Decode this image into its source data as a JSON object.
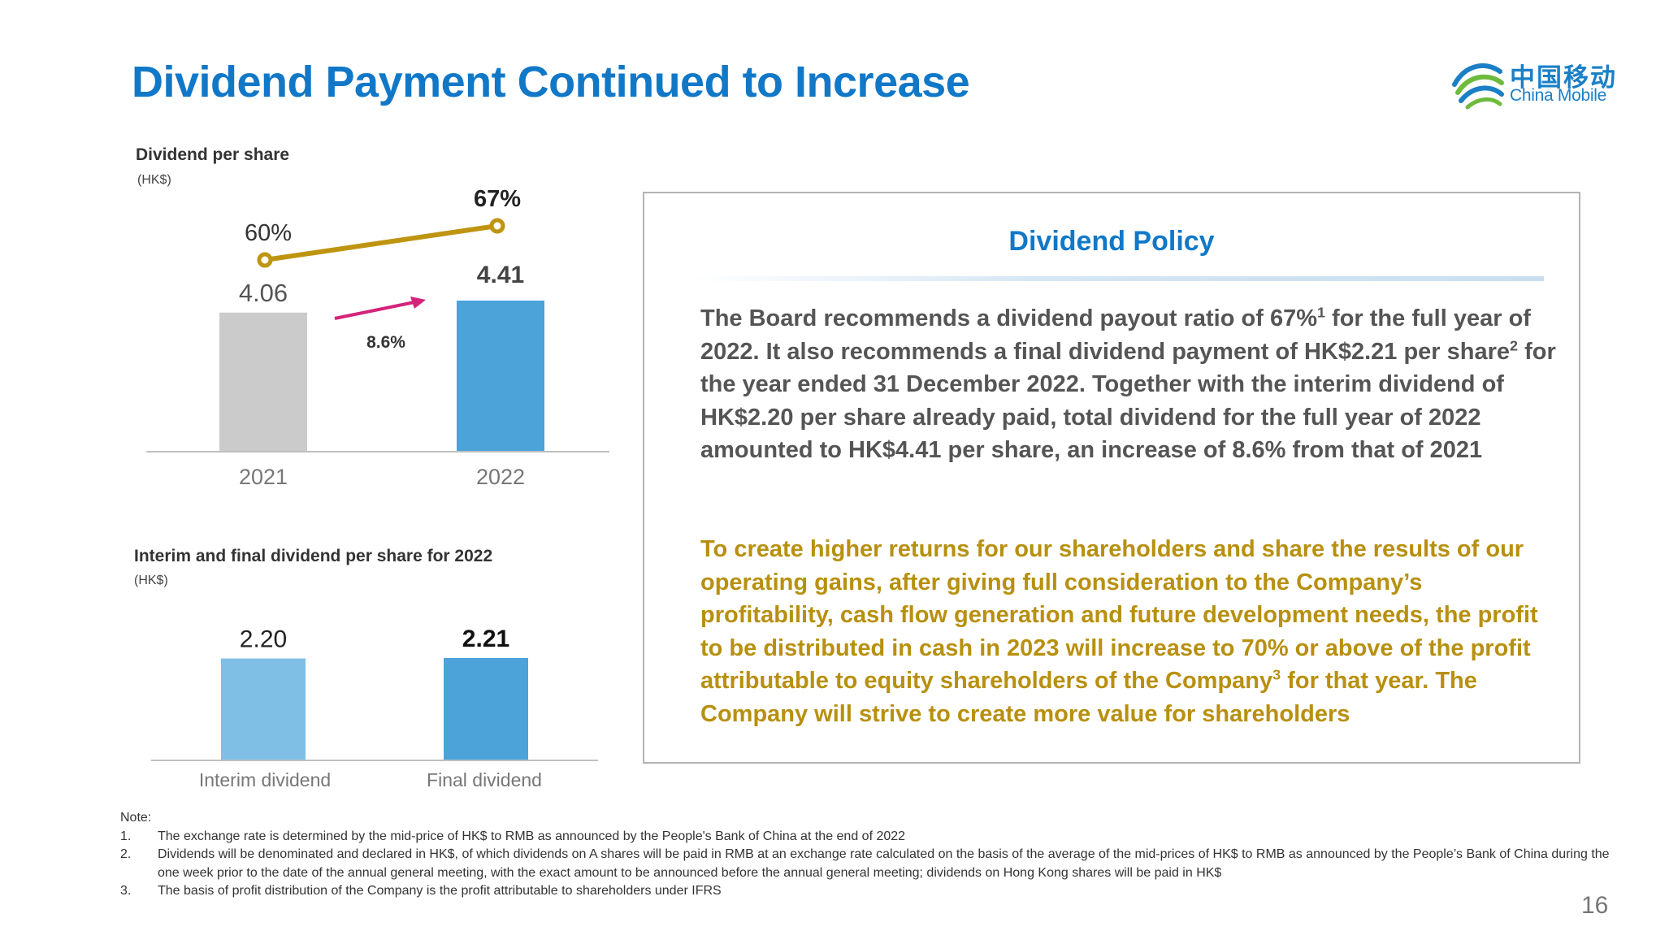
{
  "slide": {
    "title": "Dividend Payment Continued to Increase",
    "page_number": "16",
    "brand": {
      "name_cn": "中国移动",
      "name_en": "China Mobile",
      "color": "#1b7fc6"
    }
  },
  "chart_data": [
    {
      "type": "bar",
      "title": "Dividend per share",
      "unit_label": "(HK$)",
      "categories": [
        "2021",
        "2022"
      ],
      "values": [
        4.06,
        4.41
      ],
      "value_labels": [
        "4.06",
        "4.41"
      ],
      "bar_colors": [
        "#cbcbcb",
        "#4ba3d9"
      ],
      "growth": {
        "label": "8.6%",
        "color": "#d4237a"
      },
      "line_series": {
        "type": "line",
        "values": [
          60,
          67
        ],
        "labels": [
          "60%",
          "67%"
        ],
        "color": "#bf9410"
      },
      "grid": false,
      "legend": "none"
    },
    {
      "type": "bar",
      "title": "Interim and final dividend per share for 2022",
      "unit_label": "(HK$)",
      "categories": [
        "Interim dividend",
        "Final dividend"
      ],
      "values": [
        2.2,
        2.21
      ],
      "value_labels": [
        "2.20",
        "2.21"
      ],
      "bar_colors": [
        "#7fbfe6",
        "#4ba3d9"
      ],
      "grid": false,
      "legend": "none"
    }
  ],
  "policy": {
    "title": "Dividend Policy",
    "p1": {
      "a": "The Board recommends a dividend payout ratio of 67%",
      "sup1": "1",
      "b": " for the full year of 2022.  It also recommends a final dividend payment of HK$2.21 per share",
      "sup2": "2",
      "c": " for the year ended 31 December 2022. Together with the interim dividend of HK$2.20 per share already paid, total dividend for the full year of 2022 amounted to HK$4.41 per share, an increase of 8.6% from that of 2021"
    },
    "p2": {
      "a": "To create higher returns for our shareholders and share the results of our operating gains, after giving full consideration to the Company’s profitability, cash flow generation and future development needs, the profit to be distributed in cash in 2023 will increase to 70% or above of the profit attributable to equity shareholders of the Company",
      "sup3": "3",
      "b": " for that year. The Company will strive to create more value for shareholders"
    },
    "colors": {
      "body": "#555555",
      "highlight": "#b8900f",
      "title": "#1178c8"
    }
  },
  "notes": {
    "heading": "Note:",
    "items": [
      {
        "num": "1.",
        "text": "The exchange rate is determined by the mid-price of HK$ to RMB as announced by the People's Bank of China at the end of 2022"
      },
      {
        "num": "2.",
        "text": "Dividends will be denominated and declared in HK$, of which dividends on A shares will be paid in RMB at an exchange rate calculated on the basis of the average of the mid-prices of HK$ to RMB as announced by the People’s Bank of China during the one week prior to the date of the annual general meeting, with the exact amount to be announced before the annual general meeting; dividends on Hong Kong shares will be paid in HK$"
      },
      {
        "num": "3.",
        "text": "The basis of profit distribution of the Company is the profit attributable to shareholders under IFRS"
      }
    ]
  }
}
